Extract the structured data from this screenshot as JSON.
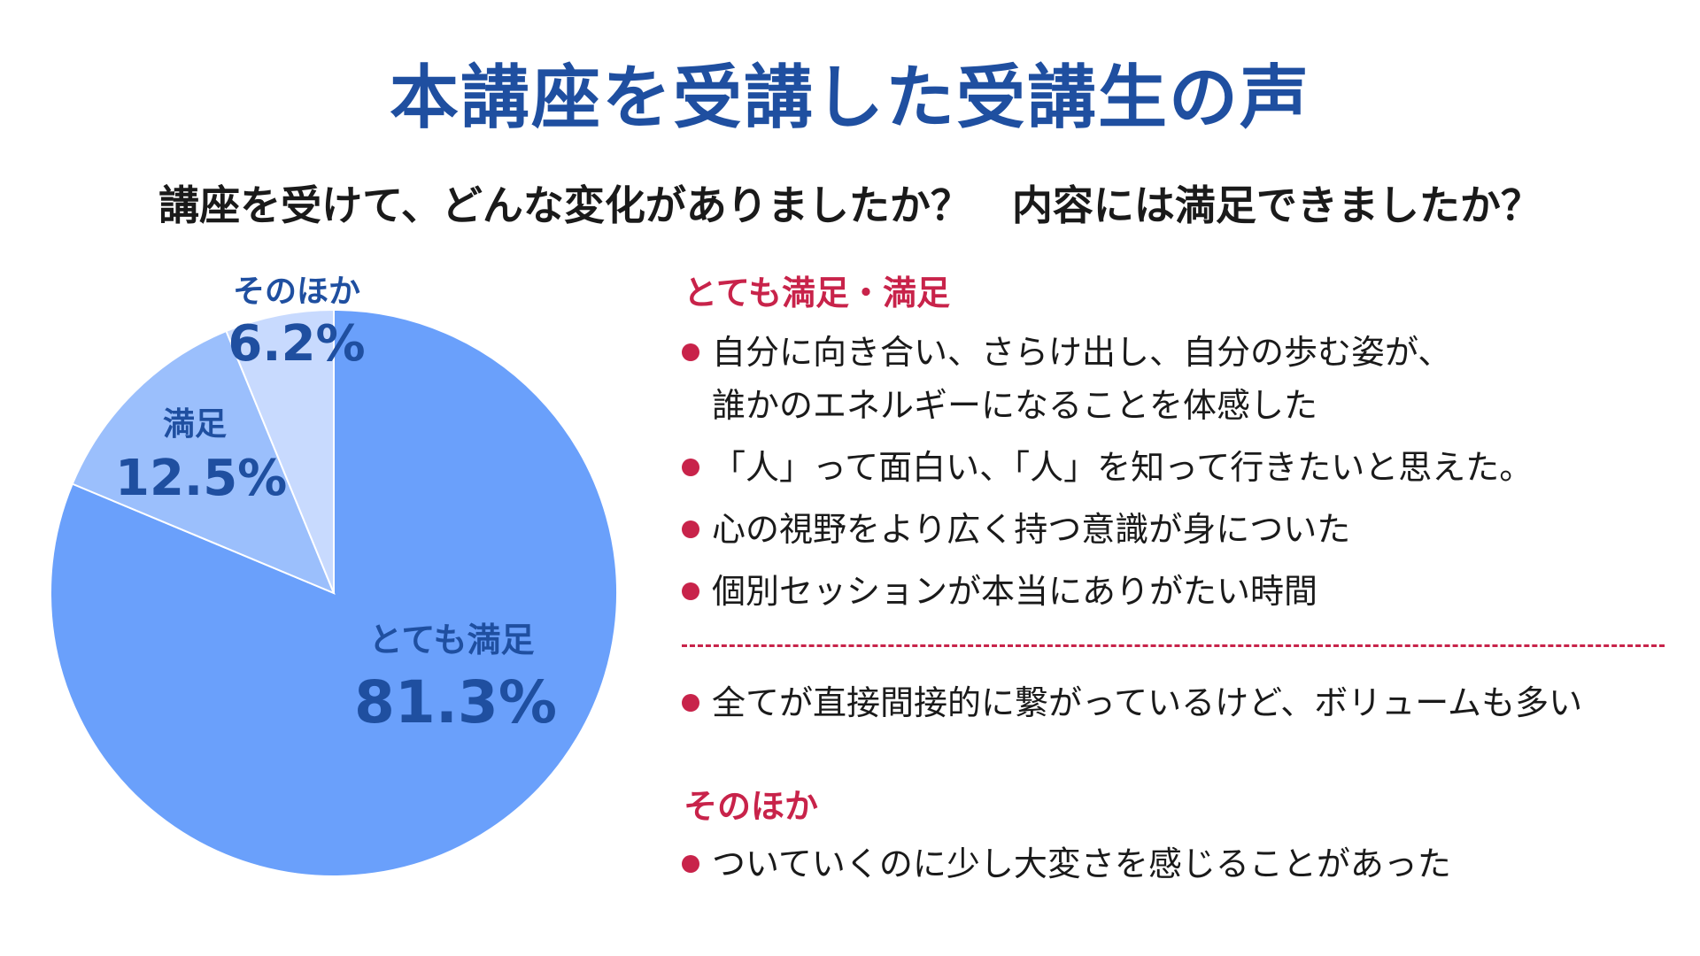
{
  "title": "本講座を受講した受講生の声",
  "subtitle": "講座を受けて、どんな変化がありましたか？　内容には満足できましたか？",
  "chart_data": {
    "type": "pie",
    "slices": [
      {
        "label": "とても満足",
        "value": 81.3,
        "display": "81.3%",
        "color": "#6aa0fb"
      },
      {
        "label": "満足",
        "value": 12.5,
        "display": "12.5%",
        "color": "#9bbffc"
      },
      {
        "label": "そのほか",
        "value": 6.2,
        "display": "6.2%",
        "color": "#c8dafe"
      }
    ],
    "start_angle_deg": 0,
    "direction": "clockwise"
  },
  "comments": {
    "satisfied_heading": "とても満足・満足",
    "satisfied_items": [
      {
        "line1": "自分に向き合い、さらけ出し、自分の歩む姿が、",
        "line2": "誰かのエネルギーになることを体感した"
      },
      {
        "line1": "「人」って面白い、「人」を知って行きたいと思えた。"
      },
      {
        "line1": "心の視野をより広く持つ意識が身についた"
      },
      {
        "line1": "個別セッションが本当にありがたい時間"
      }
    ],
    "satisfied_extra_item": "全てが直接間接的に繋がっているけど、ボリュームも多い",
    "other_heading": "そのほか",
    "other_items": [
      "ついていくのに少し大変さを感じることがあった"
    ]
  }
}
